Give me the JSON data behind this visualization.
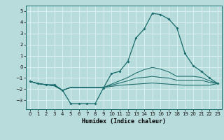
{
  "x": [
    0,
    1,
    2,
    3,
    4,
    5,
    6,
    7,
    8,
    9,
    10,
    11,
    12,
    13,
    14,
    15,
    16,
    17,
    18,
    19,
    20,
    21,
    22,
    23
  ],
  "line1": [
    -1.3,
    -1.5,
    -1.6,
    -1.6,
    -2.1,
    -3.3,
    -3.3,
    -3.3,
    -3.3,
    -1.9,
    -0.6,
    -0.4,
    0.5,
    2.6,
    3.4,
    4.8,
    4.7,
    4.3,
    3.5,
    1.2,
    0.1,
    -0.4,
    -1.0,
    -1.5
  ],
  "line2": [
    -1.3,
    -1.5,
    -1.6,
    -1.7,
    -2.1,
    -1.85,
    -1.85,
    -1.85,
    -1.85,
    -1.85,
    -1.75,
    -1.65,
    -1.6,
    -1.55,
    -1.5,
    -1.45,
    -1.5,
    -1.55,
    -1.6,
    -1.65,
    -1.65,
    -1.65,
    -1.65,
    -1.5
  ],
  "line3": [
    -1.3,
    -1.5,
    -1.6,
    -1.7,
    -2.1,
    -1.85,
    -1.85,
    -1.85,
    -1.85,
    -1.85,
    -1.65,
    -1.45,
    -1.25,
    -1.0,
    -0.95,
    -0.85,
    -0.95,
    -1.0,
    -1.2,
    -1.2,
    -1.2,
    -1.2,
    -1.4,
    -1.5
  ],
  "line4": [
    -1.3,
    -1.5,
    -1.6,
    -1.7,
    -2.1,
    -1.85,
    -1.85,
    -1.85,
    -1.85,
    -1.85,
    -1.55,
    -1.25,
    -0.95,
    -0.55,
    -0.25,
    -0.05,
    -0.2,
    -0.45,
    -0.85,
    -0.85,
    -0.85,
    -0.95,
    -1.25,
    -1.5
  ],
  "bg_color": "#b8dcdc",
  "line_color": "#1a6b6b",
  "grid_color": "#d8f0f0",
  "xlabel": "Humidex (Indice chaleur)",
  "ylim": [
    -3.8,
    5.5
  ],
  "xlim": [
    -0.5,
    23.5
  ],
  "yticks": [
    -3,
    -2,
    -1,
    0,
    1,
    2,
    3,
    4,
    5
  ],
  "xticks": [
    0,
    1,
    2,
    3,
    4,
    5,
    6,
    7,
    8,
    9,
    10,
    11,
    12,
    13,
    14,
    15,
    16,
    17,
    18,
    19,
    20,
    21,
    22,
    23
  ]
}
